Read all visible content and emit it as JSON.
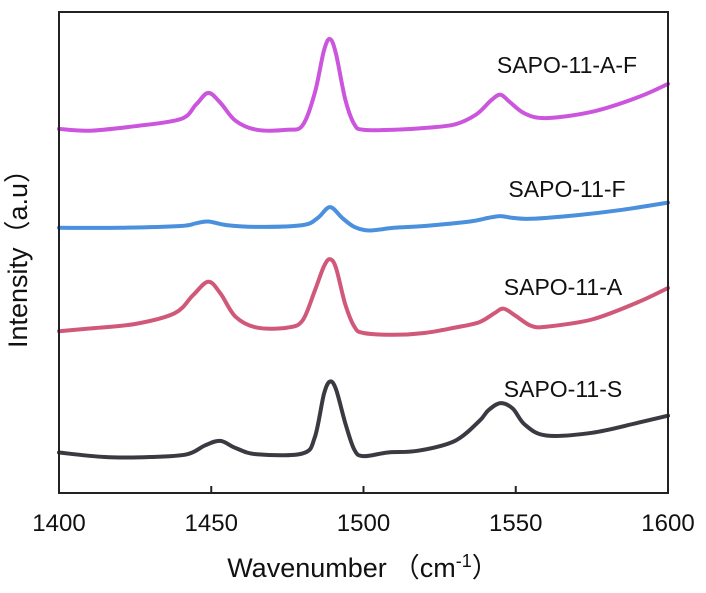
{
  "chart_data": {
    "type": "line",
    "xlabel": "Wavenumber",
    "xlabel_unit": "（cm",
    "xlabel_sup": "-1",
    "xlabel_close": "）",
    "ylabel": "Intensity（a.u）",
    "xlim": [
      1400,
      1600
    ],
    "x_ticks": [
      1400,
      1450,
      1500,
      1550,
      1600
    ],
    "x_tick_labels": [
      "1400",
      "1450",
      "1500",
      "1550",
      "1600"
    ],
    "y_ticks_shown": false,
    "legend": "inline labels above each curve",
    "grid": false,
    "series": [
      {
        "name": "SAPO-11-A-F",
        "color": "#cc55dd",
        "x": [
          1400,
          1410,
          1425,
          1440,
          1445,
          1449,
          1453,
          1458,
          1465,
          1475,
          1480,
          1484,
          1487,
          1489,
          1491,
          1494,
          1497,
          1500,
          1510,
          1520,
          1530,
          1537,
          1542,
          1545,
          1548,
          1553,
          1560,
          1575,
          1590,
          1600
        ],
        "y": [
          3.85,
          3.83,
          3.88,
          3.96,
          4.12,
          4.25,
          4.14,
          3.94,
          3.84,
          3.84,
          3.89,
          4.25,
          4.72,
          4.85,
          4.68,
          4.18,
          3.9,
          3.84,
          3.84,
          3.86,
          3.9,
          4.01,
          4.17,
          4.23,
          4.15,
          4.02,
          3.97,
          4.04,
          4.2,
          4.35
        ]
      },
      {
        "name": "SAPO-11-F",
        "color": "#4a90dd",
        "x": [
          1400,
          1420,
          1440,
          1445,
          1449,
          1455,
          1465,
          1480,
          1485,
          1489,
          1493,
          1497,
          1502,
          1510,
          1520,
          1535,
          1541,
          1545,
          1549,
          1555,
          1570,
          1585,
          1600
        ],
        "y": [
          2.75,
          2.75,
          2.77,
          2.8,
          2.82,
          2.78,
          2.76,
          2.78,
          2.86,
          2.98,
          2.86,
          2.76,
          2.72,
          2.75,
          2.77,
          2.82,
          2.86,
          2.88,
          2.86,
          2.85,
          2.89,
          2.95,
          3.03
        ]
      },
      {
        "name": "SAPO-11-A",
        "color": "#d05878",
        "x": [
          1400,
          1410,
          1425,
          1438,
          1444,
          1449,
          1453,
          1458,
          1465,
          1475,
          1480,
          1484,
          1487,
          1489,
          1491,
          1494,
          1497,
          1500,
          1510,
          1520,
          1530,
          1538,
          1543,
          1546,
          1550,
          1555,
          1560,
          1575,
          1590,
          1600
        ],
        "y": [
          1.6,
          1.63,
          1.68,
          1.8,
          2.0,
          2.15,
          2.02,
          1.76,
          1.64,
          1.64,
          1.72,
          2.05,
          2.32,
          2.4,
          2.3,
          1.9,
          1.65,
          1.58,
          1.56,
          1.58,
          1.64,
          1.7,
          1.8,
          1.85,
          1.77,
          1.66,
          1.65,
          1.73,
          1.92,
          2.08
        ]
      },
      {
        "name": "SAPO-11-S",
        "color": "#3a3a42",
        "x": [
          1400,
          1415,
          1430,
          1442,
          1448,
          1453,
          1458,
          1465,
          1480,
          1484,
          1487,
          1489,
          1491,
          1494,
          1497,
          1500,
          1508,
          1518,
          1530,
          1538,
          1541,
          1545,
          1549,
          1553,
          1560,
          1575,
          1590,
          1600
        ],
        "y": [
          0.25,
          0.2,
          0.2,
          0.23,
          0.33,
          0.38,
          0.3,
          0.23,
          0.24,
          0.42,
          0.9,
          1.04,
          0.95,
          0.58,
          0.28,
          0.21,
          0.25,
          0.27,
          0.38,
          0.6,
          0.72,
          0.8,
          0.74,
          0.56,
          0.44,
          0.47,
          0.58,
          0.66
        ]
      }
    ],
    "ylim": [
      -0.2,
      5.15
    ]
  }
}
